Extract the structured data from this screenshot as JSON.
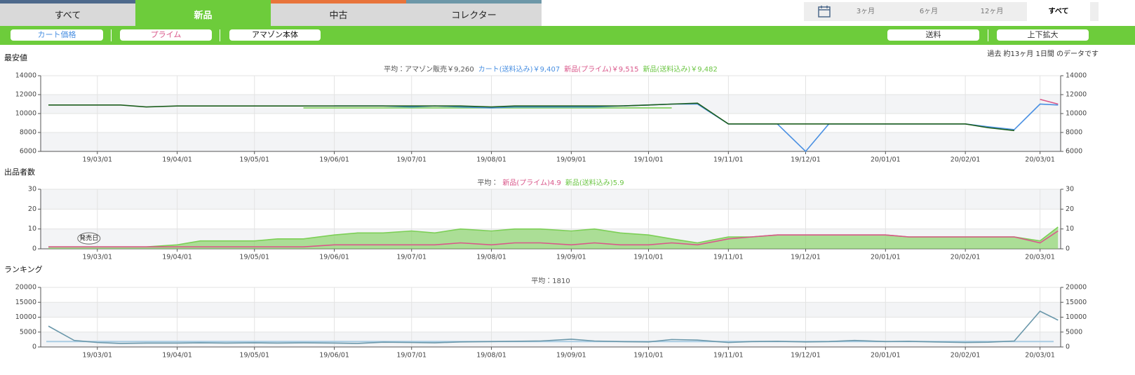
{
  "tabs": [
    "すべて",
    "新品",
    "中古",
    "コレクター"
  ],
  "range_options": [
    "3ヶ月",
    "6ヶ月",
    "12ヶ月",
    "すべて"
  ],
  "toggles": [
    "カート価格",
    "プライム",
    "アマゾン本体"
  ],
  "right_buttons": [
    "送料",
    "上下拡大"
  ],
  "data_note": "過去 約13ヶ月 1日間 のデータです",
  "chart_data": [
    {
      "type": "line",
      "title": "最安値",
      "legend": [
        {
          "text": "平均：アマゾン販売￥9,260",
          "color": "#555555"
        },
        {
          "text": "カート(送料込み)￥9,407",
          "color": "#4a90e2"
        },
        {
          "text": "新品(プライム)￥9,515",
          "color": "#d9578a"
        },
        {
          "text": "新品(送料込み)￥9,482",
          "color": "#6cc644"
        }
      ],
      "x": [
        "19/02/10",
        "19/02/20",
        "19/03/01",
        "19/03/10",
        "19/03/20",
        "19/04/01",
        "19/04/10",
        "19/04/20",
        "19/05/01",
        "19/05/10",
        "19/05/20",
        "19/06/01",
        "19/06/10",
        "19/06/20",
        "19/07/01",
        "19/07/10",
        "19/07/20",
        "19/08/01",
        "19/08/10",
        "19/08/20",
        "19/09/01",
        "19/09/10",
        "19/09/20",
        "19/10/01",
        "19/10/10",
        "19/10/20",
        "19/11/01",
        "19/11/10",
        "19/11/20",
        "19/12/01",
        "19/12/10",
        "19/12/20",
        "20/01/01",
        "20/01/10",
        "20/01/20",
        "20/02/01",
        "20/02/10",
        "20/02/20",
        "20/03/01",
        "20/03/08"
      ],
      "xlim": [
        "19/02/07",
        "20/03/09"
      ],
      "xticks": [
        "19/03/01",
        "19/04/01",
        "19/05/01",
        "19/06/01",
        "19/07/01",
        "19/08/01",
        "19/09/01",
        "19/10/01",
        "19/11/01",
        "19/12/01",
        "20/01/01",
        "20/02/01",
        "20/03/01"
      ],
      "ylim": [
        6000,
        14000
      ],
      "yticks": [
        6000,
        8000,
        10000,
        12000,
        14000
      ],
      "y2lim": [
        6000,
        14000
      ],
      "y2ticks": [
        6000,
        8000,
        10000,
        12000,
        14000
      ],
      "grid": true,
      "series": [
        {
          "name": "新品(送料込み)",
          "color": "#7ccf56",
          "values": [
            null,
            null,
            null,
            null,
            null,
            null,
            null,
            null,
            null,
            null,
            10600,
            10600,
            10600,
            10600,
            10600,
            10600,
            10600,
            10600,
            10600,
            10600,
            10600,
            10600,
            10600,
            10600,
            10600,
            null,
            null,
            null,
            null,
            null,
            null,
            null,
            null,
            null,
            null,
            null,
            null,
            null,
            null,
            null
          ]
        },
        {
          "name": "カート(送料込み)",
          "color": "#4a90e2",
          "values": [
            null,
            null,
            null,
            null,
            null,
            null,
            null,
            null,
            null,
            null,
            null,
            10800,
            10800,
            10800,
            10700,
            10800,
            10700,
            10600,
            10700,
            10700,
            10700,
            10700,
            10800,
            10900,
            11000,
            11000,
            8900,
            8900,
            8900,
            6000,
            8900,
            8900,
            8900,
            8900,
            8900,
            8900,
            8600,
            8300,
            11000,
            10900
          ]
        },
        {
          "name": "アマゾン販売",
          "color": "#1d5e1d",
          "values": [
            10900,
            10900,
            10900,
            10900,
            10700,
            10800,
            10800,
            10800,
            10800,
            10800,
            10800,
            10800,
            10800,
            10800,
            10800,
            10800,
            10800,
            10700,
            10800,
            10800,
            10800,
            10800,
            10800,
            10900,
            11000,
            11100,
            8900,
            8900,
            8900,
            8900,
            8900,
            8900,
            8900,
            8900,
            8900,
            8900,
            8500,
            8200,
            null,
            null
          ]
        },
        {
          "name": "新品(プライム)",
          "color": "#d9578a",
          "values": [
            null,
            null,
            null,
            null,
            null,
            null,
            null,
            null,
            null,
            null,
            null,
            null,
            null,
            null,
            null,
            null,
            null,
            null,
            null,
            null,
            null,
            null,
            null,
            null,
            null,
            null,
            null,
            null,
            null,
            null,
            null,
            null,
            null,
            null,
            null,
            null,
            null,
            null,
            11500,
            11000
          ]
        }
      ]
    },
    {
      "type": "line",
      "title": "出品者数",
      "legend": [
        {
          "text": "平均：",
          "color": "#555555"
        },
        {
          "text": "新品(プライム)4.9",
          "color": "#d9578a"
        },
        {
          "text": "新品(送料込み)5.9",
          "color": "#6cc644"
        }
      ],
      "x": [
        "19/02/10",
        "19/02/20",
        "19/03/01",
        "19/03/10",
        "19/03/20",
        "19/04/01",
        "19/04/10",
        "19/04/20",
        "19/05/01",
        "19/05/10",
        "19/05/20",
        "19/06/01",
        "19/06/10",
        "19/06/20",
        "19/07/01",
        "19/07/10",
        "19/07/20",
        "19/08/01",
        "19/08/10",
        "19/08/20",
        "19/09/01",
        "19/09/10",
        "19/09/20",
        "19/10/01",
        "19/10/10",
        "19/10/20",
        "19/11/01",
        "19/11/10",
        "19/11/20",
        "19/12/01",
        "19/12/10",
        "19/12/20",
        "20/01/01",
        "20/01/10",
        "20/01/20",
        "20/02/01",
        "20/02/10",
        "20/02/20",
        "20/03/01",
        "20/03/08"
      ],
      "xlim": [
        "19/02/07",
        "20/03/09"
      ],
      "xticks": [
        "19/03/01",
        "19/04/01",
        "19/05/01",
        "19/06/01",
        "19/07/01",
        "19/08/01",
        "19/09/01",
        "19/10/01",
        "19/11/01",
        "19/12/01",
        "20/01/01",
        "20/02/01",
        "20/03/01"
      ],
      "ylim": [
        0,
        30
      ],
      "yticks": [
        0,
        10,
        20,
        30
      ],
      "y2lim": [
        0,
        30
      ],
      "y2ticks": [
        0,
        10,
        20,
        30
      ],
      "grid": true,
      "annotation": {
        "text": "発売日",
        "x": "19/03/01",
        "y": 1
      },
      "series": [
        {
          "name": "新品(送料込み)",
          "color": "#7ccf56",
          "fill": true,
          "values": [
            1,
            1,
            1,
            1,
            1,
            2,
            4,
            4,
            4,
            5,
            5,
            7,
            8,
            8,
            9,
            8,
            10,
            9,
            10,
            10,
            9,
            10,
            8,
            7,
            5,
            3,
            6,
            6,
            7,
            7,
            7,
            7,
            7,
            6,
            6,
            6,
            6,
            6,
            4,
            11
          ]
        },
        {
          "name": "新品(プライム)",
          "color": "#d9578a",
          "values": [
            1,
            1,
            1,
            1,
            1,
            1,
            1,
            1,
            1,
            1,
            1,
            2,
            2,
            2,
            2,
            2,
            3,
            2,
            3,
            3,
            2,
            3,
            2,
            2,
            3,
            2,
            5,
            6,
            7,
            7,
            7,
            7,
            7,
            6,
            6,
            6,
            6,
            6,
            3,
            9
          ]
        }
      ]
    },
    {
      "type": "line",
      "title": "ランキング",
      "legend": [
        {
          "text": "平均：1810",
          "color": "#555555"
        }
      ],
      "average": 1810,
      "average_color": "#a9cce3",
      "x": [
        "19/02/10",
        "19/02/20",
        "19/03/01",
        "19/03/10",
        "19/03/20",
        "19/04/01",
        "19/04/10",
        "19/04/20",
        "19/05/01",
        "19/05/10",
        "19/05/20",
        "19/06/01",
        "19/06/10",
        "19/06/20",
        "19/07/01",
        "19/07/10",
        "19/07/20",
        "19/08/01",
        "19/08/10",
        "19/08/20",
        "19/09/01",
        "19/09/10",
        "19/09/20",
        "19/10/01",
        "19/10/10",
        "19/10/20",
        "19/11/01",
        "19/11/10",
        "19/11/20",
        "19/12/01",
        "19/12/10",
        "19/12/20",
        "20/01/01",
        "20/01/10",
        "20/01/20",
        "20/02/01",
        "20/02/10",
        "20/02/20",
        "20/03/01",
        "20/03/08"
      ],
      "xlim": [
        "19/02/07",
        "20/03/09"
      ],
      "xticks": [
        "19/03/01",
        "19/04/01",
        "19/05/01",
        "19/06/01",
        "19/07/01",
        "19/08/01",
        "19/09/01",
        "19/10/01",
        "19/11/01",
        "19/12/01",
        "20/01/01",
        "20/02/01",
        "20/03/01"
      ],
      "ylim": [
        0,
        20000
      ],
      "yticks": [
        0,
        5000,
        10000,
        15000,
        20000
      ],
      "y2lim": [
        0,
        20000
      ],
      "y2ticks": [
        0,
        5000,
        10000,
        15000,
        20000
      ],
      "grid": true,
      "series": [
        {
          "name": "ランキング",
          "color": "#6a97aa",
          "values": [
            7000,
            2200,
            1500,
            1200,
            1300,
            1300,
            1400,
            1300,
            1400,
            1300,
            1400,
            1300,
            1200,
            1600,
            1500,
            1400,
            1700,
            1800,
            1900,
            2000,
            2600,
            2000,
            1800,
            1700,
            2500,
            2300,
            1500,
            1800,
            1900,
            1700,
            1800,
            2200,
            1800,
            1900,
            1700,
            1500,
            1600,
            2000,
            12000,
            9000
          ]
        }
      ]
    }
  ]
}
